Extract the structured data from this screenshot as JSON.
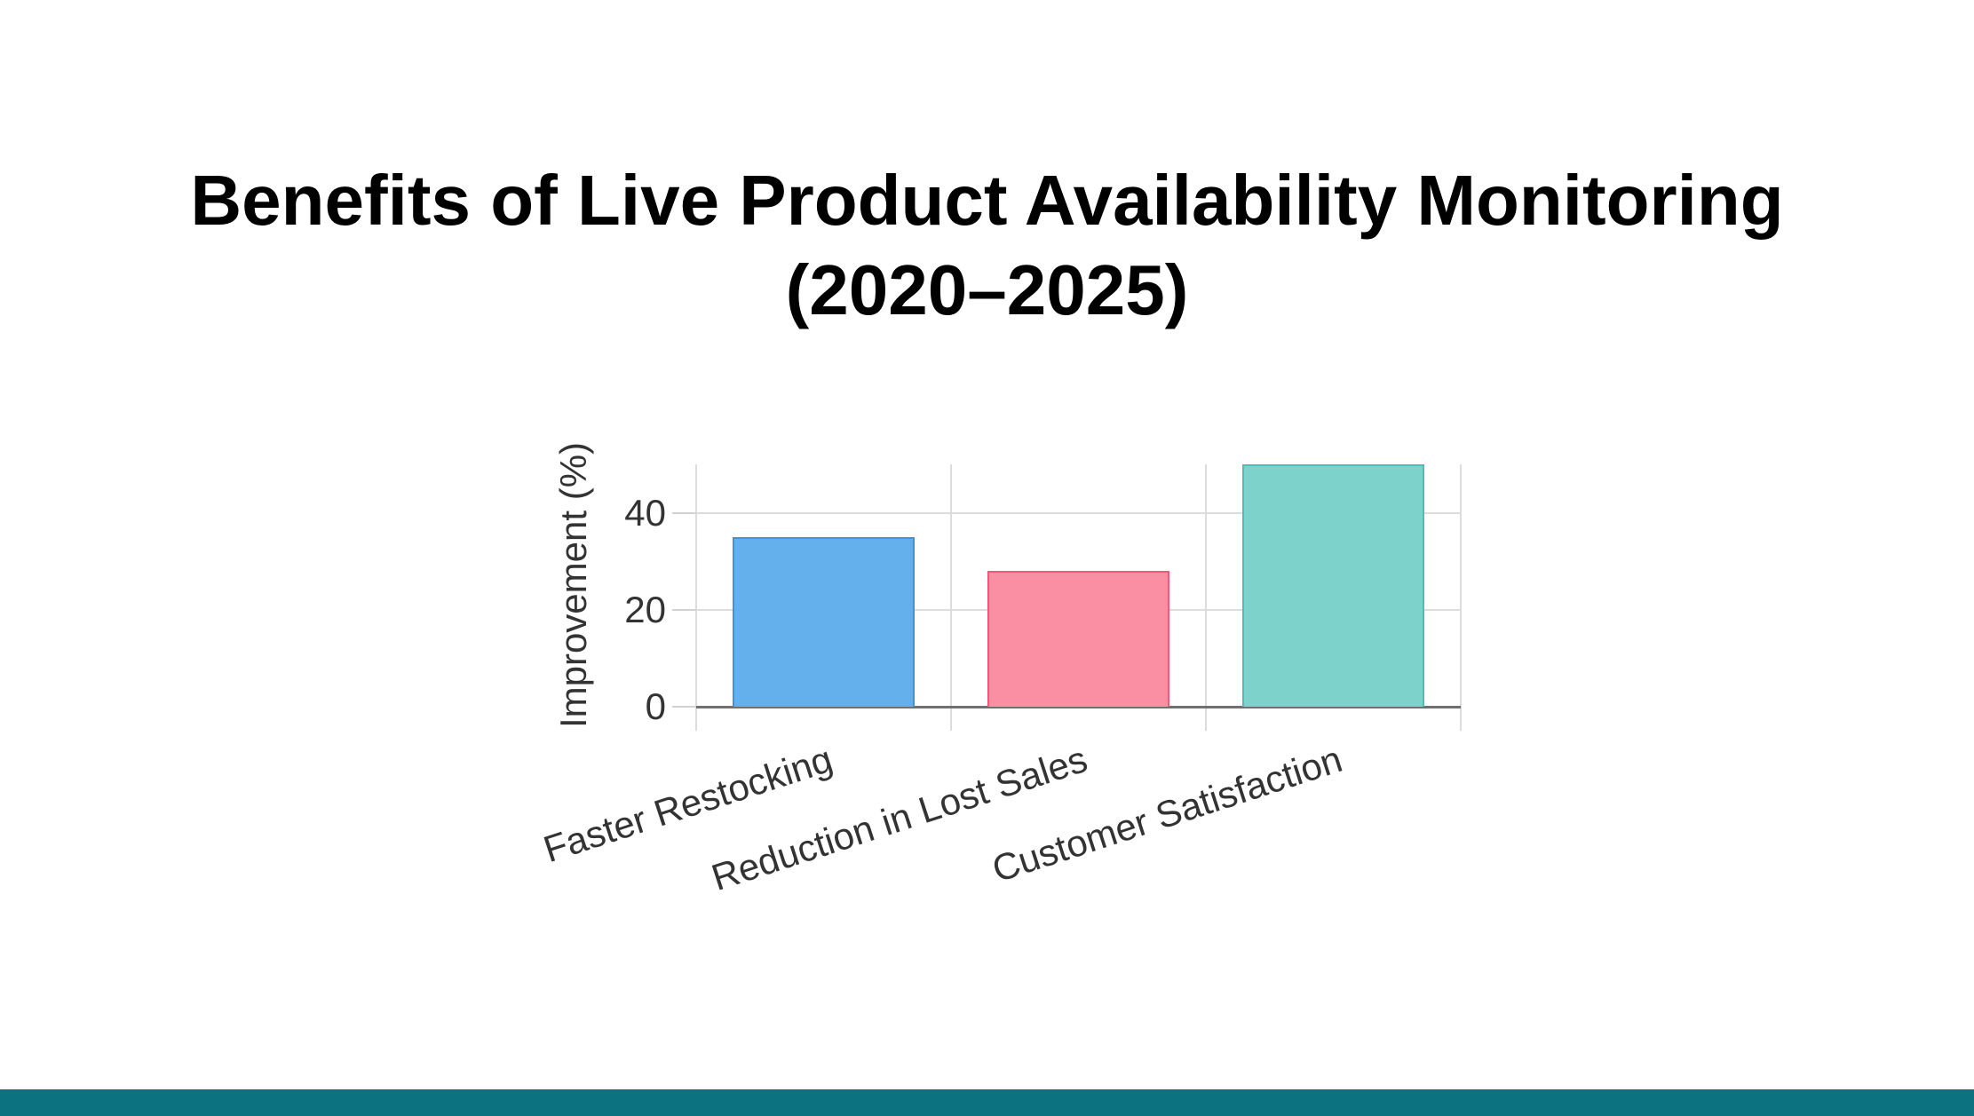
{
  "page": {
    "background_color": "#ffffff",
    "footer_bar_color": "#0c7280"
  },
  "title": {
    "line1": "Benefits of Live Product Availability Monitoring",
    "line2": "(2020–2025)"
  },
  "chart_data": {
    "type": "bar",
    "title": "Benefits of Live Product Availability Monitoring (2020–2025)",
    "categories": [
      "Faster Restocking",
      "Reduction in Lost Sales",
      "Customer Satisfaction"
    ],
    "values": [
      35,
      28,
      50
    ],
    "xlabel": "",
    "ylabel": "Improvement (%)",
    "yticks": [
      0,
      20,
      40
    ],
    "ylim": [
      0,
      50
    ],
    "grid": true,
    "legend": false,
    "tick_label_angle_deg": -18,
    "bar_fill_colors": [
      "#64B0EC",
      "#FA8FA4",
      "#7DD2CC"
    ],
    "bar_border_colors": [
      "#3D94DB",
      "#F4577A",
      "#4BBFB7"
    ],
    "gridline_color": "#dcdcdc",
    "axis_line_color": "#707070",
    "tick_label_color": "#333333"
  }
}
